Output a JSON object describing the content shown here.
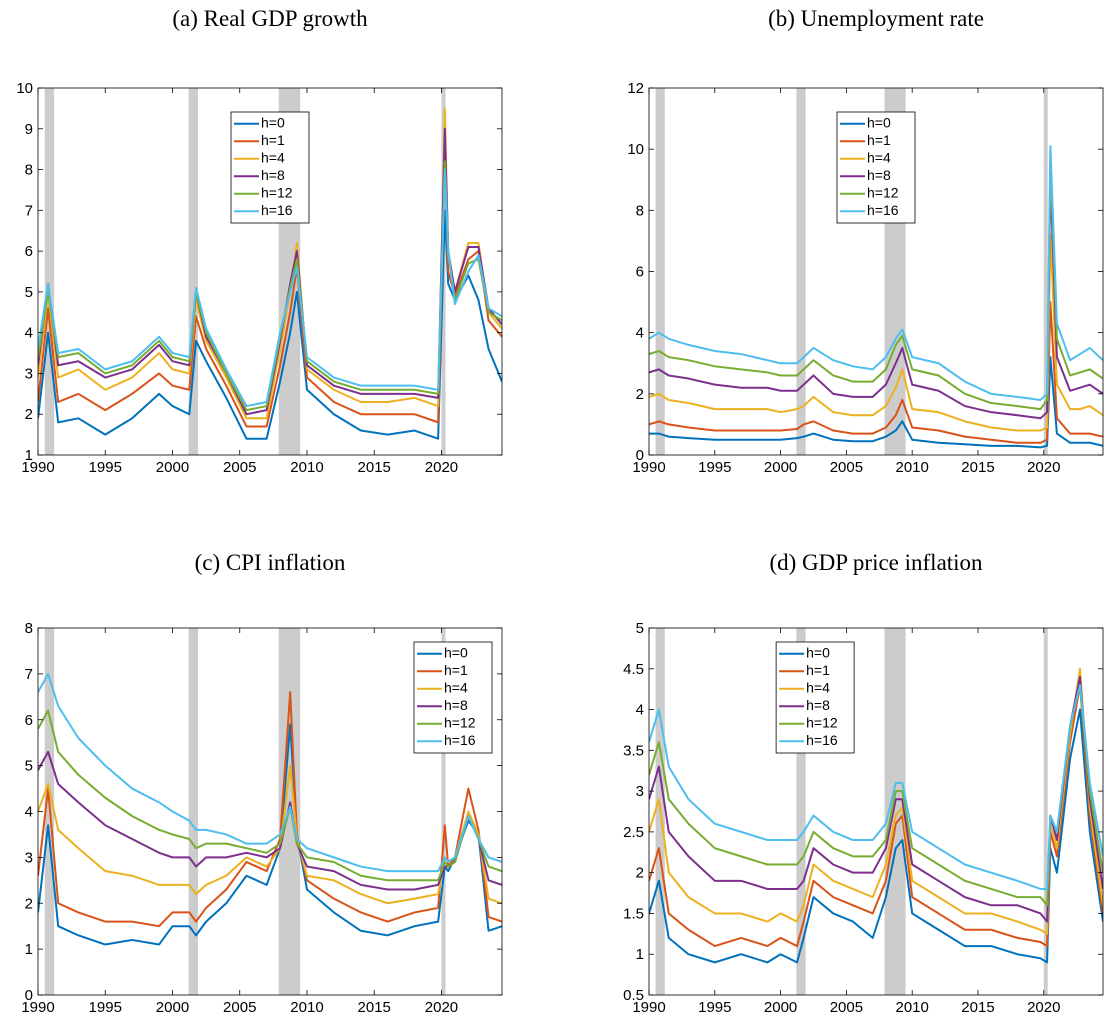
{
  "chart_data": [
    {
      "type": "line",
      "title": "(a) Real GDP growth",
      "x": [
        1990,
        1990.75,
        1991.5,
        1993,
        1995,
        1997,
        1999,
        2000,
        2001.25,
        2001.75,
        2002.5,
        2004,
        2005.5,
        2007,
        2008,
        2008.75,
        2009.25,
        2010,
        2012,
        2014,
        2016,
        2018,
        2019.75,
        2020.25,
        2020.5,
        2021,
        2022,
        2022.75,
        2023.5,
        2024.5
      ],
      "xlim": [
        1990,
        2024.5
      ],
      "xticks": [
        1990,
        1995,
        2000,
        2005,
        2010,
        2015,
        2020
      ],
      "ylim": [
        1,
        10
      ],
      "yticks": [
        1,
        2,
        3,
        4,
        5,
        6,
        7,
        8,
        9,
        10
      ],
      "recessions": [
        [
          1990.5,
          1991.2
        ],
        [
          2001.2,
          2001.9
        ],
        [
          2007.9,
          2009.5
        ],
        [
          2020.0,
          2020.3
        ]
      ],
      "legend": "north",
      "series": [
        {
          "name": "h=0",
          "color": "#0072BD",
          "values": [
            1.9,
            4.0,
            1.8,
            1.9,
            1.5,
            1.9,
            2.5,
            2.2,
            2.0,
            3.8,
            3.3,
            2.4,
            1.4,
            1.4,
            2.8,
            4.0,
            5.0,
            2.6,
            2.0,
            1.6,
            1.5,
            1.6,
            1.4,
            7.0,
            5.2,
            4.8,
            5.4,
            4.8,
            3.6,
            2.8
          ]
        },
        {
          "name": "h=1",
          "color": "#D95319",
          "values": [
            2.3,
            4.6,
            2.3,
            2.5,
            2.1,
            2.5,
            3.0,
            2.7,
            2.6,
            4.4,
            3.6,
            2.7,
            1.7,
            1.7,
            3.2,
            4.5,
            5.6,
            2.9,
            2.3,
            2.0,
            2.0,
            2.0,
            1.8,
            8.5,
            5.5,
            4.9,
            5.8,
            6.0,
            4.3,
            3.9
          ]
        },
        {
          "name": "h=4",
          "color": "#EDB120",
          "values": [
            2.9,
            5.0,
            2.9,
            3.1,
            2.6,
            2.9,
            3.5,
            3.1,
            3.0,
            4.8,
            3.8,
            2.9,
            1.9,
            1.9,
            3.6,
            5.0,
            6.2,
            3.1,
            2.6,
            2.3,
            2.3,
            2.4,
            2.2,
            9.5,
            5.9,
            5.0,
            6.2,
            6.2,
            4.5,
            4.1
          ]
        },
        {
          "name": "h=8",
          "color": "#7E2F8E",
          "values": [
            3.2,
            5.2,
            3.2,
            3.3,
            2.9,
            3.1,
            3.7,
            3.3,
            3.2,
            5.0,
            3.9,
            3.0,
            2.0,
            2.1,
            3.8,
            5.2,
            6.0,
            3.2,
            2.7,
            2.5,
            2.5,
            2.5,
            2.4,
            9.0,
            6.0,
            5.0,
            6.1,
            6.1,
            4.6,
            4.2
          ]
        },
        {
          "name": "h=12",
          "color": "#77AC30",
          "values": [
            3.4,
            5.0,
            3.4,
            3.5,
            3.0,
            3.2,
            3.8,
            3.4,
            3.3,
            5.0,
            4.0,
            3.0,
            2.1,
            2.2,
            3.9,
            5.1,
            5.8,
            3.3,
            2.8,
            2.6,
            2.6,
            2.6,
            2.5,
            8.2,
            6.0,
            4.8,
            5.7,
            5.8,
            4.5,
            4.3
          ]
        },
        {
          "name": "h=16",
          "color": "#4DBEEE",
          "values": [
            3.6,
            5.2,
            3.5,
            3.6,
            3.1,
            3.3,
            3.9,
            3.5,
            3.4,
            5.1,
            4.1,
            3.1,
            2.2,
            2.3,
            4.0,
            5.0,
            5.6,
            3.4,
            2.9,
            2.7,
            2.7,
            2.7,
            2.6,
            8.0,
            6.0,
            4.7,
            5.5,
            5.9,
            4.6,
            4.4
          ]
        }
      ]
    },
    {
      "type": "line",
      "title": "(b) Unemployment rate",
      "x": [
        1990,
        1990.75,
        1991.5,
        1993,
        1995,
        1997,
        1999,
        2000,
        2001.25,
        2001.75,
        2002.5,
        2004,
        2005.5,
        2007,
        2008,
        2008.75,
        2009.25,
        2010,
        2012,
        2014,
        2016,
        2018,
        2019.75,
        2020.25,
        2020.5,
        2021,
        2022,
        2022.75,
        2023.5,
        2024.5
      ],
      "xlim": [
        1990,
        2024.5
      ],
      "xticks": [
        1990,
        1995,
        2000,
        2005,
        2010,
        2015,
        2020
      ],
      "ylim": [
        0,
        12
      ],
      "yticks": [
        0,
        2,
        4,
        6,
        8,
        10,
        12
      ],
      "recessions": [
        [
          1990.5,
          1991.2
        ],
        [
          2001.2,
          2001.9
        ],
        [
          2007.9,
          2009.5
        ],
        [
          2020.0,
          2020.3
        ]
      ],
      "legend": "north",
      "series": [
        {
          "name": "h=0",
          "color": "#0072BD",
          "values": [
            0.7,
            0.7,
            0.6,
            0.55,
            0.5,
            0.5,
            0.5,
            0.5,
            0.55,
            0.6,
            0.7,
            0.5,
            0.45,
            0.45,
            0.6,
            0.8,
            1.1,
            0.5,
            0.4,
            0.35,
            0.3,
            0.3,
            0.25,
            0.3,
            3.2,
            0.7,
            0.4,
            0.4,
            0.4,
            0.3
          ]
        },
        {
          "name": "h=1",
          "color": "#D95319",
          "values": [
            1.0,
            1.1,
            1.0,
            0.9,
            0.8,
            0.8,
            0.8,
            0.8,
            0.85,
            1.0,
            1.1,
            0.8,
            0.7,
            0.7,
            0.9,
            1.3,
            1.8,
            0.9,
            0.8,
            0.6,
            0.5,
            0.4,
            0.4,
            0.5,
            5.0,
            1.2,
            0.7,
            0.7,
            0.7,
            0.6
          ]
        },
        {
          "name": "h=4",
          "color": "#EDB120",
          "values": [
            1.9,
            2.0,
            1.8,
            1.7,
            1.5,
            1.5,
            1.5,
            1.4,
            1.5,
            1.6,
            1.9,
            1.4,
            1.3,
            1.3,
            1.6,
            2.2,
            2.8,
            1.5,
            1.4,
            1.1,
            0.9,
            0.8,
            0.8,
            0.9,
            7.2,
            2.3,
            1.5,
            1.5,
            1.6,
            1.3
          ]
        },
        {
          "name": "h=8",
          "color": "#7E2F8E",
          "values": [
            2.7,
            2.8,
            2.6,
            2.5,
            2.3,
            2.2,
            2.2,
            2.1,
            2.1,
            2.3,
            2.6,
            2.0,
            1.9,
            1.9,
            2.3,
            3.0,
            3.5,
            2.3,
            2.1,
            1.6,
            1.4,
            1.3,
            1.2,
            1.4,
            9.0,
            3.2,
            2.1,
            2.2,
            2.3,
            2.0
          ]
        },
        {
          "name": "h=12",
          "color": "#77AC30",
          "values": [
            3.3,
            3.4,
            3.2,
            3.1,
            2.9,
            2.8,
            2.7,
            2.6,
            2.6,
            2.8,
            3.1,
            2.6,
            2.4,
            2.4,
            2.8,
            3.6,
            3.9,
            2.8,
            2.6,
            2.0,
            1.7,
            1.6,
            1.5,
            1.8,
            9.6,
            3.8,
            2.6,
            2.7,
            2.8,
            2.5
          ]
        },
        {
          "name": "h=16",
          "color": "#4DBEEE",
          "values": [
            3.8,
            4.0,
            3.8,
            3.6,
            3.4,
            3.3,
            3.1,
            3.0,
            3.0,
            3.2,
            3.5,
            3.1,
            2.9,
            2.8,
            3.2,
            3.8,
            4.1,
            3.2,
            3.0,
            2.4,
            2.0,
            1.9,
            1.8,
            2.0,
            10.1,
            4.3,
            3.1,
            3.3,
            3.5,
            3.1
          ]
        }
      ]
    },
    {
      "type": "line",
      "title": "(c) CPI inflation",
      "x": [
        1990,
        1990.75,
        1991.5,
        1993,
        1995,
        1997,
        1999,
        2000,
        2001.25,
        2001.75,
        2002.5,
        2004,
        2005.5,
        2007,
        2008,
        2008.75,
        2009.25,
        2010,
        2012,
        2014,
        2016,
        2018,
        2019.75,
        2020.25,
        2020.5,
        2021,
        2022,
        2022.75,
        2023.5,
        2024.5
      ],
      "xlim": [
        1990,
        2024.5
      ],
      "xticks": [
        1990,
        1995,
        2000,
        2005,
        2010,
        2015,
        2020
      ],
      "ylim": [
        0,
        8
      ],
      "yticks": [
        0,
        1,
        2,
        3,
        4,
        5,
        6,
        7,
        8
      ],
      "recessions": [
        [
          1990.5,
          1991.2
        ],
        [
          2001.2,
          2001.9
        ],
        [
          2007.9,
          2009.5
        ],
        [
          2020.0,
          2020.3
        ]
      ],
      "legend": "northeast",
      "series": [
        {
          "name": "h=0",
          "color": "#0072BD",
          "values": [
            1.8,
            3.7,
            1.5,
            1.3,
            1.1,
            1.2,
            1.1,
            1.5,
            1.5,
            1.3,
            1.6,
            2.0,
            2.6,
            2.4,
            3.2,
            5.9,
            3.5,
            2.3,
            1.8,
            1.4,
            1.3,
            1.5,
            1.6,
            2.8,
            2.7,
            3.0,
            3.8,
            3.5,
            1.4,
            1.5
          ]
        },
        {
          "name": "h=1",
          "color": "#D95319",
          "values": [
            2.6,
            4.5,
            2.0,
            1.8,
            1.6,
            1.6,
            1.5,
            1.8,
            1.8,
            1.6,
            1.9,
            2.3,
            2.9,
            2.7,
            3.4,
            6.6,
            3.5,
            2.5,
            2.1,
            1.8,
            1.6,
            1.8,
            1.9,
            3.7,
            2.8,
            3.0,
            4.5,
            3.6,
            1.7,
            1.6
          ]
        },
        {
          "name": "h=4",
          "color": "#EDB120",
          "values": [
            4.0,
            4.6,
            3.6,
            3.2,
            2.7,
            2.6,
            2.4,
            2.4,
            2.4,
            2.2,
            2.4,
            2.6,
            3.0,
            2.8,
            3.2,
            5.0,
            3.4,
            2.6,
            2.5,
            2.2,
            2.0,
            2.1,
            2.2,
            3.0,
            2.9,
            3.0,
            4.0,
            3.5,
            2.1,
            2.0
          ]
        },
        {
          "name": "h=8",
          "color": "#7E2F8E",
          "values": [
            4.9,
            5.3,
            4.6,
            4.2,
            3.7,
            3.4,
            3.1,
            3.0,
            3.0,
            2.8,
            3.0,
            3.0,
            3.1,
            3.0,
            3.2,
            4.2,
            3.3,
            2.8,
            2.7,
            2.4,
            2.3,
            2.3,
            2.4,
            2.8,
            2.8,
            2.9,
            3.9,
            3.4,
            2.5,
            2.4
          ]
        },
        {
          "name": "h=12",
          "color": "#77AC30",
          "values": [
            5.8,
            6.2,
            5.3,
            4.8,
            4.3,
            3.9,
            3.6,
            3.5,
            3.4,
            3.2,
            3.3,
            3.3,
            3.2,
            3.1,
            3.3,
            4.1,
            3.3,
            3.0,
            2.9,
            2.6,
            2.5,
            2.5,
            2.5,
            2.9,
            2.8,
            2.9,
            3.9,
            3.4,
            2.8,
            2.7
          ]
        },
        {
          "name": "h=16",
          "color": "#4DBEEE",
          "values": [
            6.6,
            7.0,
            6.3,
            5.6,
            5.0,
            4.5,
            4.2,
            4.0,
            3.8,
            3.6,
            3.6,
            3.5,
            3.3,
            3.3,
            3.5,
            4.1,
            3.4,
            3.2,
            3.0,
            2.8,
            2.7,
            2.7,
            2.7,
            3.0,
            2.9,
            3.0,
            3.9,
            3.4,
            3.0,
            2.9
          ]
        }
      ]
    },
    {
      "type": "line",
      "title": "(d) GDP price inflation",
      "x": [
        1990,
        1990.75,
        1991.5,
        1993,
        1995,
        1997,
        1999,
        2000,
        2001.25,
        2001.75,
        2002.5,
        2004,
        2005.5,
        2007,
        2008,
        2008.75,
        2009.25,
        2010,
        2012,
        2014,
        2016,
        2018,
        2019.75,
        2020.25,
        2020.5,
        2021,
        2022,
        2022.75,
        2023.5,
        2024.5
      ],
      "xlim": [
        1990,
        2024.5
      ],
      "xticks": [
        1990,
        1995,
        2000,
        2005,
        2010,
        2015,
        2020
      ],
      "ylim": [
        0.5,
        5
      ],
      "yticks": [
        0.5,
        1,
        1.5,
        2,
        2.5,
        3,
        3.5,
        4,
        4.5,
        5
      ],
      "recessions": [
        [
          1990.5,
          1991.2
        ],
        [
          2001.2,
          2001.9
        ],
        [
          2007.9,
          2009.5
        ],
        [
          2020.0,
          2020.3
        ]
      ],
      "legend": "northwest",
      "series": [
        {
          "name": "h=0",
          "color": "#0072BD",
          "values": [
            1.5,
            1.9,
            1.2,
            1.0,
            0.9,
            1.0,
            0.9,
            1.0,
            0.9,
            1.2,
            1.7,
            1.5,
            1.4,
            1.2,
            1.7,
            2.3,
            2.4,
            1.5,
            1.3,
            1.1,
            1.1,
            1.0,
            0.95,
            0.9,
            2.3,
            2.0,
            3.4,
            4.0,
            2.5,
            1.4
          ]
        },
        {
          "name": "h=1",
          "color": "#D95319",
          "values": [
            1.9,
            2.3,
            1.5,
            1.3,
            1.1,
            1.2,
            1.1,
            1.2,
            1.1,
            1.4,
            1.9,
            1.7,
            1.6,
            1.5,
            1.9,
            2.6,
            2.7,
            1.7,
            1.5,
            1.3,
            1.3,
            1.2,
            1.15,
            1.1,
            2.5,
            2.2,
            3.6,
            4.3,
            2.7,
            1.5
          ]
        },
        {
          "name": "h=4",
          "color": "#EDB120",
          "values": [
            2.5,
            2.9,
            2.0,
            1.7,
            1.5,
            1.5,
            1.4,
            1.5,
            1.4,
            1.6,
            2.1,
            1.9,
            1.8,
            1.7,
            2.1,
            2.7,
            2.8,
            1.9,
            1.7,
            1.5,
            1.5,
            1.4,
            1.3,
            1.25,
            2.6,
            2.3,
            3.7,
            4.5,
            2.8,
            1.6
          ]
        },
        {
          "name": "h=8",
          "color": "#7E2F8E",
          "values": [
            2.9,
            3.3,
            2.5,
            2.2,
            1.9,
            1.9,
            1.8,
            1.8,
            1.8,
            1.9,
            2.3,
            2.1,
            2.0,
            2.0,
            2.3,
            2.9,
            2.9,
            2.1,
            1.9,
            1.7,
            1.6,
            1.6,
            1.5,
            1.4,
            2.7,
            2.4,
            3.8,
            4.4,
            2.9,
            1.8
          ]
        },
        {
          "name": "h=12",
          "color": "#77AC30",
          "values": [
            3.2,
            3.6,
            2.9,
            2.6,
            2.3,
            2.2,
            2.1,
            2.1,
            2.1,
            2.2,
            2.5,
            2.3,
            2.2,
            2.2,
            2.4,
            3.0,
            3.0,
            2.3,
            2.1,
            1.9,
            1.8,
            1.7,
            1.7,
            1.6,
            2.7,
            2.5,
            3.8,
            4.3,
            3.0,
            2.0
          ]
        },
        {
          "name": "h=16",
          "color": "#4DBEEE",
          "values": [
            3.6,
            4.0,
            3.3,
            2.9,
            2.6,
            2.5,
            2.4,
            2.4,
            2.4,
            2.5,
            2.7,
            2.5,
            2.4,
            2.4,
            2.6,
            3.1,
            3.1,
            2.5,
            2.3,
            2.1,
            2.0,
            1.9,
            1.8,
            1.8,
            2.7,
            2.5,
            3.8,
            4.3,
            3.1,
            2.2
          ]
        }
      ]
    }
  ]
}
